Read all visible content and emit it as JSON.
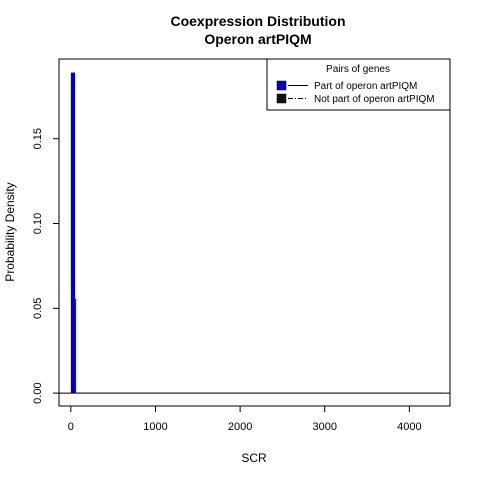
{
  "chart_data": {
    "type": "histogram",
    "title_line1": "Coexpression Distribution",
    "title_line2": "Operon artPIQM",
    "xlabel": "SCR",
    "ylabel": "Probability Density",
    "xlim": [
      -140,
      4480
    ],
    "ylim": [
      -0.0076,
      0.197
    ],
    "x_ticks": [
      0,
      1000,
      2000,
      3000,
      4000
    ],
    "y_ticks": [
      0.0,
      0.05,
      0.1,
      0.15
    ],
    "x_tick_labels": [
      "0",
      "1000",
      "2000",
      "3000",
      "4000"
    ],
    "y_tick_labels": [
      "0.00",
      "0.05",
      "0.10",
      "0.15"
    ],
    "legend": {
      "title": "Pairs of genes",
      "position": "top-right",
      "entries": [
        "Part of operon artPIQM",
        "Not part of operon artPIQM"
      ]
    },
    "series": [
      {
        "name": "Part of operon artPIQM",
        "color": "#0000cc",
        "bars": [
          {
            "x0": 0,
            "x1": 50,
            "density": 0.189
          },
          {
            "x0": 50,
            "x1": 60,
            "density": 0.0555
          }
        ]
      },
      {
        "name": "Not part of operon artPIQM",
        "color": "#000000",
        "bars": [
          {
            "x0": 0,
            "x1": 4400,
            "density": 0.0002
          }
        ]
      }
    ],
    "baseline": 0
  }
}
